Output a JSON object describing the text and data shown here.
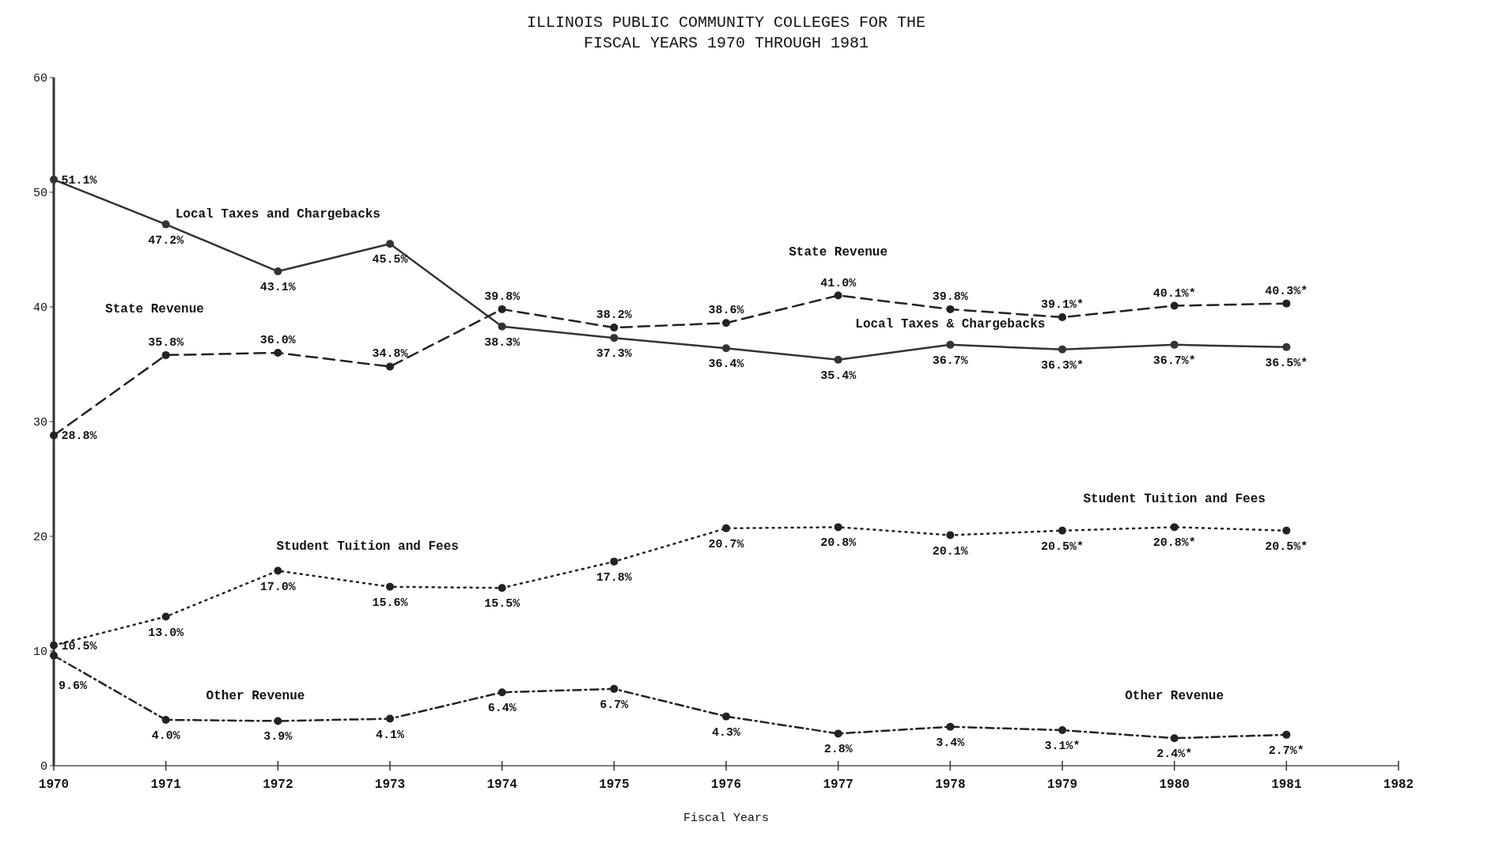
{
  "chart_data": {
    "type": "line",
    "title": "ILLINOIS PUBLIC COMMUNITY COLLEGES FOR THE\nFISCAL YEARS 1970 THROUGH 1981",
    "xlabel": "Fiscal Years",
    "x": [
      1970,
      1971,
      1972,
      1973,
      1974,
      1975,
      1976,
      1977,
      1978,
      1979,
      1980,
      1981
    ],
    "xlim": [
      1970,
      1982
    ],
    "xticks": [
      1970,
      1971,
      1972,
      1973,
      1974,
      1975,
      1976,
      1977,
      1978,
      1979,
      1980,
      1981,
      1982
    ],
    "ylim": [
      0,
      60
    ],
    "yticks": [
      0,
      10,
      20,
      30,
      40,
      50,
      60
    ],
    "grid": false,
    "marker": "circle",
    "series": [
      {
        "color": "#333333",
        "line_style": "solid",
        "values": [
          51.1,
          47.2,
          43.1,
          45.5,
          38.3,
          37.3,
          36.4,
          35.4,
          36.7,
          36.3,
          36.7,
          36.5
        ],
        "value_labels": [
          "51.1%",
          "47.2%",
          "43.1%",
          "45.5%",
          "38.3%",
          "37.3%",
          "36.4%",
          "35.4%",
          "36.7%",
          "36.3%*",
          "36.7%*",
          "36.5%*"
        ]
      },
      {
        "color": "#222222",
        "line_style": "dashed",
        "values": [
          28.8,
          35.8,
          36.0,
          34.8,
          39.8,
          38.2,
          38.6,
          41.0,
          39.8,
          39.1,
          40.1,
          40.3
        ],
        "value_labels": [
          "28.8%",
          "35.8%",
          "36.0%",
          "34.8%",
          "39.8%",
          "38.2%",
          "38.6%",
          "41.0%",
          "39.8%",
          "39.1%*",
          "40.1%*",
          "40.3%*"
        ]
      },
      {
        "color": "#222222",
        "line_style": "dotted",
        "values": [
          10.5,
          13.0,
          17.0,
          15.6,
          15.5,
          17.8,
          20.7,
          20.8,
          20.1,
          20.5,
          20.8,
          20.5
        ],
        "value_labels": [
          "10.5%",
          "13.0%",
          "17.0%",
          "15.6%",
          "15.5%",
          "17.8%",
          "20.7%",
          "20.8%",
          "20.1%",
          "20.5%*",
          "20.8%*",
          "20.5%*"
        ]
      },
      {
        "color": "#222222",
        "line_style": "dashdot",
        "values": [
          9.6,
          4.0,
          3.9,
          4.1,
          6.4,
          6.7,
          4.3,
          2.8,
          3.4,
          3.1,
          2.4,
          2.7
        ],
        "value_labels": [
          "9.6%",
          "4.0%",
          "3.9%",
          "4.1%",
          "6.4%",
          "6.7%",
          "4.3%",
          "2.8%",
          "3.4%",
          "3.1%*",
          "2.4%*",
          "2.7%*"
        ]
      }
    ],
    "annotations": [
      "Local Taxes and Chargebacks",
      "State Revenue",
      "Student Tuition and Fees",
      "Other Revenue",
      "State Revenue",
      "Local Taxes & Chargebacks",
      "Student Tuition and Fees",
      "Other Revenue"
    ]
  }
}
